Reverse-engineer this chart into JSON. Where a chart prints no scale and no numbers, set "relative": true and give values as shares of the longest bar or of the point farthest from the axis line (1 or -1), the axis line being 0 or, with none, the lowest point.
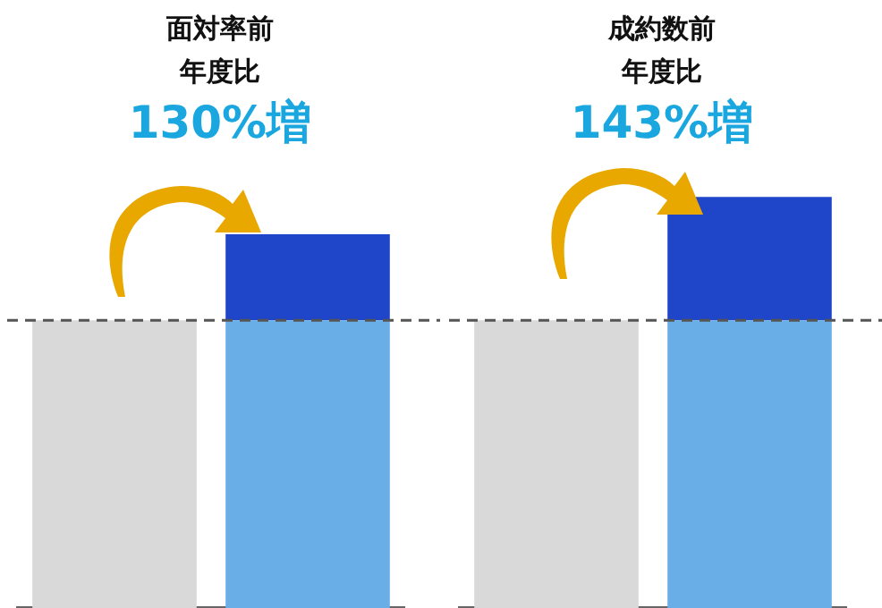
{
  "chart_data": [
    {
      "type": "bar",
      "title": "面対率前年度比",
      "subtitle": "130%増",
      "categories": [
        null,
        null
      ],
      "stacked": true,
      "relative": true,
      "legend": false,
      "grid": false,
      "series": [
        {
          "colors": [
            "#d9d9d9",
            "#6aaee8"
          ],
          "values": [
            0.77,
            0.77
          ]
        },
        {
          "color": "#1f45c8",
          "values": [
            null,
            0.23
          ]
        }
      ],
      "ref_lines": [
        {
          "axis": "y",
          "value": 0.77,
          "color": "#555555",
          "line_style": "dashed"
        }
      ]
    },
    {
      "type": "bar",
      "title": "成約数前年度比",
      "subtitle": "143%増",
      "categories": [
        null,
        null
      ],
      "stacked": true,
      "relative": true,
      "legend": false,
      "grid": false,
      "series": [
        {
          "colors": [
            "#d9d9d9",
            "#6aaee8"
          ],
          "values": [
            0.7,
            0.7
          ]
        },
        {
          "color": "#1f45c8",
          "values": [
            null,
            0.3
          ]
        }
      ],
      "ref_lines": [
        {
          "axis": "y",
          "value": 0.7,
          "color": "#555555",
          "line_style": "dashed"
        }
      ]
    }
  ]
}
